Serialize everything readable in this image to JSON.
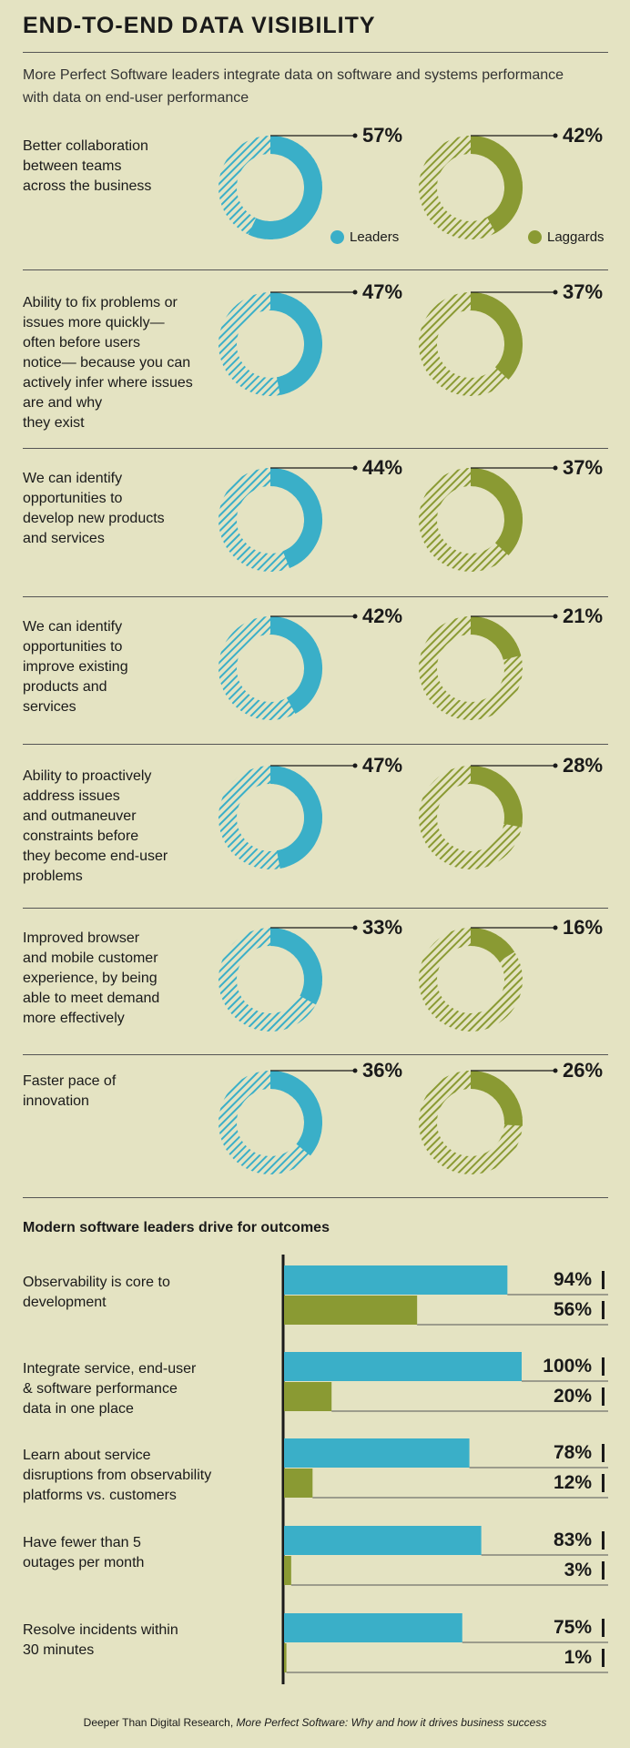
{
  "header": {
    "title": "END-TO-END DATA VISIBILITY",
    "subtitle": "More Perfect Software leaders integrate data on software and systems performance with data on end-user performance"
  },
  "legend": {
    "leaders": "Leaders",
    "laggards": "Laggards"
  },
  "colors": {
    "background": "#e4e3c2",
    "leaders": "#3aafc8",
    "laggards": "#8a9a33",
    "text": "#1a1a1a"
  },
  "chart_data": [
    {
      "type": "pie",
      "series_names": [
        "Leaders",
        "Laggards"
      ],
      "rows": [
        {
          "label": "Better collaboration between teams across the business",
          "lines": [
            "Better collaboration",
            "between teams",
            "across the business"
          ],
          "leaders": 57,
          "laggards": 42,
          "leaders_text": "57%",
          "laggards_text": "42%"
        },
        {
          "label": "Ability to fix problems or issues more quickly— often before users notice— because you can actively infer where issues are and why they exist",
          "lines": [
            "Ability to fix problems or",
            "issues more quickly—",
            "often before users",
            "notice— because you can",
            "actively infer where issues",
            "are and why",
            "they exist"
          ],
          "leaders": 47,
          "laggards": 37,
          "leaders_text": "47%",
          "laggards_text": "37%"
        },
        {
          "label": "We can identify opportunities to develop new products and services",
          "lines": [
            "We can identify",
            "opportunities to",
            "develop new products",
            "and services"
          ],
          "leaders": 44,
          "laggards": 37,
          "leaders_text": "44%",
          "laggards_text": "37%"
        },
        {
          "label": "We can identify opportunities to improve existing products and services",
          "lines": [
            "We can identify",
            "opportunities to",
            "improve existing",
            "products and",
            "services"
          ],
          "leaders": 42,
          "laggards": 21,
          "leaders_text": "42%",
          "laggards_text": "21%"
        },
        {
          "label": "Ability to proactively address issues and outmaneuver constraints before they become end-user problems",
          "lines": [
            "Ability to proactively",
            "address issues",
            "and outmaneuver",
            "constraints before",
            "they become end-user",
            "problems"
          ],
          "leaders": 47,
          "laggards": 28,
          "leaders_text": "47%",
          "laggards_text": "28%"
        },
        {
          "label": "Improved browser and mobile customer experience, by being able to meet demand more effectively",
          "lines": [
            "Improved browser",
            "and mobile customer",
            "experience, by being",
            "able to meet demand",
            "more effectively"
          ],
          "leaders": 33,
          "laggards": 16,
          "leaders_text": "33%",
          "laggards_text": "16%"
        },
        {
          "label": "Faster pace of innovation",
          "lines": [
            "Faster pace of",
            "innovation"
          ],
          "leaders": 36,
          "laggards": 26,
          "leaders_text": "36%",
          "laggards_text": "26%"
        }
      ]
    },
    {
      "type": "bar",
      "title": "Modern software leaders drive for outcomes",
      "categories": [
        "Observability is core to development",
        "Integrate service, end-user & software performance data in one place",
        "Learn about service disruptions from observability platforms vs. customers",
        "Have fewer than 5 outages per month",
        "Resolve incidents within 30 minutes"
      ],
      "category_lines": [
        [
          "Observability is core to",
          "development"
        ],
        [
          "Integrate service, end-user",
          "& software performance",
          "data in one place"
        ],
        [
          "Learn about service",
          "disruptions from observability",
          "platforms vs. customers"
        ],
        [
          "Have fewer than 5",
          "outages per month"
        ],
        [
          "Resolve incidents within",
          "30 minutes"
        ]
      ],
      "series": [
        {
          "name": "Leaders",
          "values": [
            94,
            100,
            78,
            83,
            75
          ],
          "labels": [
            "94%",
            "100%",
            "78%",
            "83%",
            "75%"
          ]
        },
        {
          "name": "Laggards",
          "values": [
            56,
            20,
            12,
            3,
            1
          ],
          "labels": [
            "56%",
            "20%",
            "12%",
            "3%",
            "1%"
          ]
        }
      ],
      "ylim": [
        0,
        100
      ]
    }
  ],
  "footer": {
    "source_plain": "Deeper Than Digital Research, ",
    "source_italic": "More Perfect Software: Why and how it drives business success"
  }
}
